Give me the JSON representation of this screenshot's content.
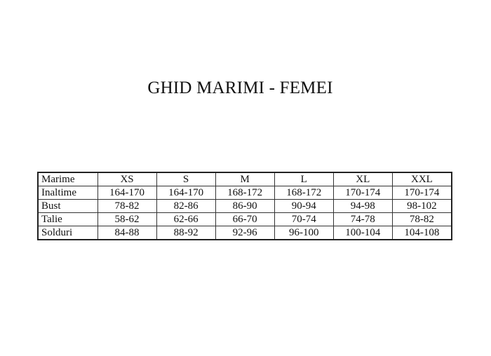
{
  "title": "GHID MARIMI - FEMEI",
  "table": {
    "header": [
      "Marime",
      "XS",
      "S",
      "M",
      "L",
      "XL",
      "XXL"
    ],
    "rows": [
      {
        "label": "Inaltime",
        "values": [
          "164-170",
          "164-170",
          "168-172",
          "168-172",
          "170-174",
          "170-174"
        ]
      },
      {
        "label": "Bust",
        "values": [
          "78-82",
          "82-86",
          "86-90",
          "90-94",
          "94-98",
          "98-102"
        ]
      },
      {
        "label": "Talie",
        "values": [
          "58-62",
          "62-66",
          "66-70",
          "70-74",
          "74-78",
          "78-82"
        ]
      },
      {
        "label": "Solduri",
        "values": [
          "84-88",
          "88-92",
          "92-96",
          "96-100",
          "100-104",
          "104-108"
        ]
      }
    ]
  }
}
